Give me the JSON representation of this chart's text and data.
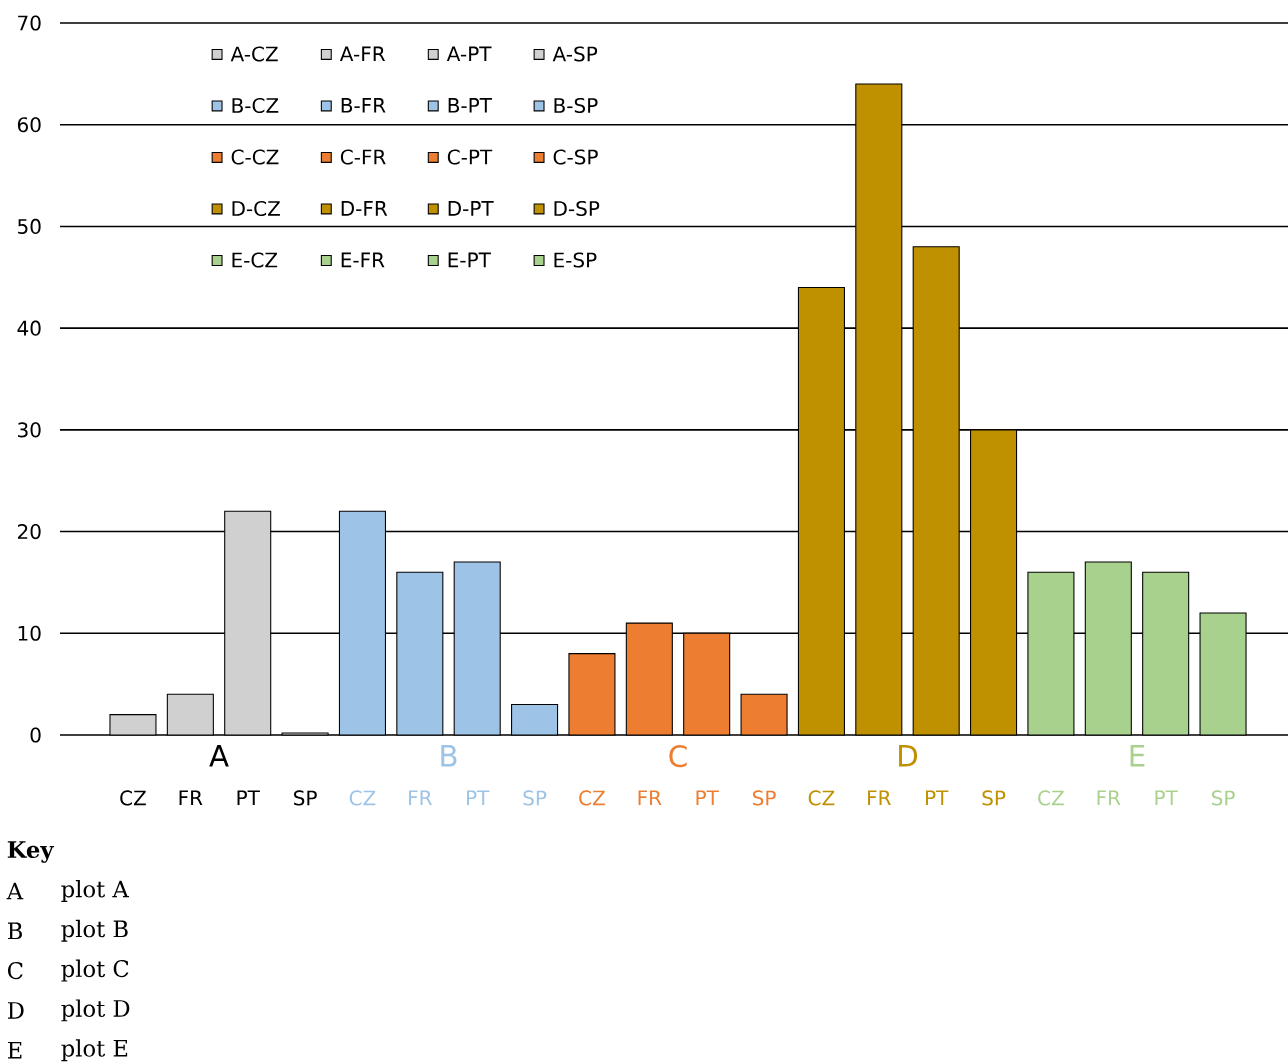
{
  "chart_data": {
    "type": "bar",
    "categories": [
      "CZ",
      "FR",
      "PT",
      "SP",
      "CZ",
      "FR",
      "PT",
      "SP",
      "CZ",
      "FR",
      "PT",
      "SP",
      "CZ",
      "FR",
      "PT",
      "SP",
      "CZ",
      "FR",
      "PT",
      "SP"
    ],
    "series": [
      {
        "name": "A-CZ",
        "color": "#d0d0d0",
        "values": [
          2,
          null,
          null,
          null,
          null,
          null,
          null,
          null,
          null,
          null,
          null,
          null,
          null,
          null,
          null,
          null,
          null,
          null,
          null,
          null
        ]
      },
      {
        "name": "A-FR",
        "color": "#d0d0d0",
        "values": [
          null,
          4,
          null,
          null,
          null,
          null,
          null,
          null,
          null,
          null,
          null,
          null,
          null,
          null,
          null,
          null,
          null,
          null,
          null,
          null
        ]
      },
      {
        "name": "A-PT",
        "color": "#d0d0d0",
        "values": [
          null,
          null,
          22,
          null,
          null,
          null,
          null,
          null,
          null,
          null,
          null,
          null,
          null,
          null,
          null,
          null,
          null,
          null,
          null,
          null
        ]
      },
      {
        "name": "A-SP",
        "color": "#d0d0d0",
        "values": [
          null,
          null,
          null,
          0.2,
          null,
          null,
          null,
          null,
          null,
          null,
          null,
          null,
          null,
          null,
          null,
          null,
          null,
          null,
          null,
          null
        ]
      },
      {
        "name": "B-CZ",
        "color": "#9dc3e6",
        "values": [
          null,
          null,
          null,
          null,
          22,
          null,
          null,
          null,
          null,
          null,
          null,
          null,
          null,
          null,
          null,
          null,
          null,
          null,
          null,
          null
        ]
      },
      {
        "name": "B-FR",
        "color": "#9dc3e6",
        "values": [
          null,
          null,
          null,
          null,
          null,
          16,
          null,
          null,
          null,
          null,
          null,
          null,
          null,
          null,
          null,
          null,
          null,
          null,
          null,
          null
        ]
      },
      {
        "name": "B-PT",
        "color": "#9dc3e6",
        "values": [
          null,
          null,
          null,
          null,
          null,
          null,
          17,
          null,
          null,
          null,
          null,
          null,
          null,
          null,
          null,
          null,
          null,
          null,
          null,
          null
        ]
      },
      {
        "name": "B-SP",
        "color": "#9dc3e6",
        "values": [
          null,
          null,
          null,
          null,
          null,
          null,
          null,
          3,
          null,
          null,
          null,
          null,
          null,
          null,
          null,
          null,
          null,
          null,
          null,
          null
        ]
      },
      {
        "name": "C-CZ",
        "color": "#ed7d31",
        "values": [
          null,
          null,
          null,
          null,
          null,
          null,
          null,
          null,
          8,
          null,
          null,
          null,
          null,
          null,
          null,
          null,
          null,
          null,
          null,
          null
        ]
      },
      {
        "name": "C-FR",
        "color": "#ed7d31",
        "values": [
          null,
          null,
          null,
          null,
          null,
          null,
          null,
          null,
          null,
          11,
          null,
          null,
          null,
          null,
          null,
          null,
          null,
          null,
          null,
          null
        ]
      },
      {
        "name": "C-PT",
        "color": "#ed7d31",
        "values": [
          null,
          null,
          null,
          null,
          null,
          null,
          null,
          null,
          null,
          null,
          10,
          null,
          null,
          null,
          null,
          null,
          null,
          null,
          null,
          null
        ]
      },
      {
        "name": "C-SP",
        "color": "#ed7d31",
        "values": [
          null,
          null,
          null,
          null,
          null,
          null,
          null,
          null,
          null,
          null,
          null,
          4,
          null,
          null,
          null,
          null,
          null,
          null,
          null,
          null
        ]
      },
      {
        "name": "D-CZ",
        "color": "#bf9000",
        "values": [
          null,
          null,
          null,
          null,
          null,
          null,
          null,
          null,
          null,
          null,
          null,
          null,
          44,
          null,
          null,
          null,
          null,
          null,
          null,
          null
        ]
      },
      {
        "name": "D-FR",
        "color": "#bf9000",
        "values": [
          null,
          null,
          null,
          null,
          null,
          null,
          null,
          null,
          null,
          null,
          null,
          null,
          null,
          64,
          null,
          null,
          null,
          null,
          null,
          null
        ]
      },
      {
        "name": "D-PT",
        "color": "#bf9000",
        "values": [
          null,
          null,
          null,
          null,
          null,
          null,
          null,
          null,
          null,
          null,
          null,
          null,
          null,
          null,
          48,
          null,
          null,
          null,
          null,
          null
        ]
      },
      {
        "name": "D-SP",
        "color": "#bf9000",
        "values": [
          null,
          null,
          null,
          null,
          null,
          null,
          null,
          null,
          null,
          null,
          null,
          null,
          null,
          null,
          null,
          30,
          null,
          null,
          null,
          null
        ]
      },
      {
        "name": "E-CZ",
        "color": "#a9d18e",
        "values": [
          null,
          null,
          null,
          null,
          null,
          null,
          null,
          null,
          null,
          null,
          null,
          null,
          null,
          null,
          null,
          null,
          16,
          null,
          null,
          null
        ]
      },
      {
        "name": "E-FR",
        "color": "#a9d18e",
        "values": [
          null,
          null,
          null,
          null,
          null,
          null,
          null,
          null,
          null,
          null,
          null,
          null,
          null,
          null,
          null,
          null,
          null,
          17,
          null,
          null
        ]
      },
      {
        "name": "E-PT",
        "color": "#a9d18e",
        "values": [
          null,
          null,
          null,
          null,
          null,
          null,
          null,
          null,
          null,
          null,
          null,
          null,
          null,
          null,
          null,
          null,
          null,
          null,
          16,
          null
        ]
      },
      {
        "name": "E-SP",
        "color": "#a9d18e",
        "values": [
          null,
          null,
          null,
          null,
          null,
          null,
          null,
          null,
          null,
          null,
          null,
          null,
          null,
          null,
          null,
          null,
          null,
          null,
          null,
          12
        ]
      }
    ],
    "ylim": [
      0,
      70
    ],
    "yticks": [
      0,
      10,
      20,
      30,
      40,
      50,
      60,
      70
    ],
    "grid": "y",
    "legend": "top left",
    "annotations": [
      "A",
      "B",
      "C",
      "D",
      "E",
      "Key",
      "A",
      "plot A",
      "B",
      "plot B",
      "C",
      "plot C",
      "D",
      "plot D",
      "E",
      "plot E"
    ]
  }
}
